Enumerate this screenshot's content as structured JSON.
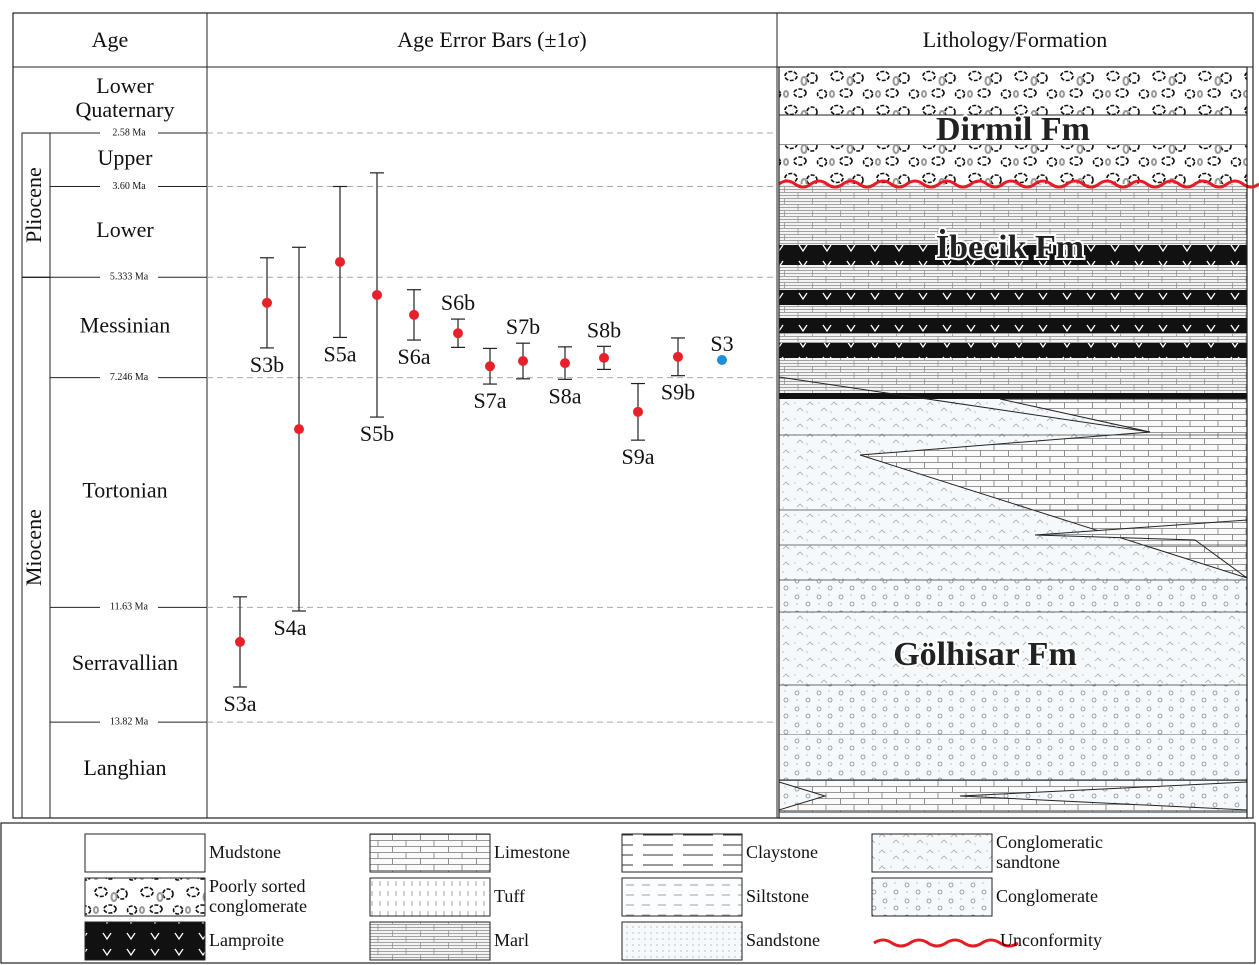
{
  "header": {
    "age": "Age",
    "error_bars": "Age Error Bars (±1σ)",
    "lithology": "Lithology/Formation"
  },
  "chart_data": {
    "type": "errorbar",
    "ylim": [
      1.32,
      15.65
    ],
    "reversed": true,
    "grid": true,
    "yticks": [
      {
        "value": 2.58,
        "label": "2.58 Ma"
      },
      {
        "value": 3.6,
        "label": "3.60 Ma"
      },
      {
        "value": 5.333,
        "label": "5.333 Ma"
      },
      {
        "value": 7.246,
        "label": "7.246 Ma"
      },
      {
        "value": 11.63,
        "label": "11.63 Ma"
      },
      {
        "value": 13.82,
        "label": "13.82 Ma"
      }
    ],
    "periods": [
      "Pliocene",
      "Miocene"
    ],
    "stages": [
      "Lower Quaternary",
      "Upper",
      "Lower",
      "Messinian",
      "Tortonian",
      "Serravallian",
      "Langhian"
    ],
    "samples": [
      {
        "label": "S3a",
        "value": 12.29,
        "error": 0.86,
        "color": "#e8202a"
      },
      {
        "label": "S3b",
        "value": 5.82,
        "error": 0.86,
        "color": "#e8202a"
      },
      {
        "label": "S4a",
        "value": 8.23,
        "error": 3.47,
        "color": "#e8202a"
      },
      {
        "label": "S5a",
        "value": 5.04,
        "error": 1.44,
        "color": "#e8202a"
      },
      {
        "label": "S5b",
        "value": 5.67,
        "error": 2.33,
        "color": "#e8202a"
      },
      {
        "label": "S6a",
        "value": 6.05,
        "error": 0.48,
        "color": "#e8202a"
      },
      {
        "label": "S6b",
        "value": 6.4,
        "error": 0.27,
        "color": "#e8202a"
      },
      {
        "label": "S7a",
        "value": 7.03,
        "error": 0.34,
        "color": "#e8202a"
      },
      {
        "label": "S7b",
        "value": 6.93,
        "error": 0.34,
        "color": "#e8202a"
      },
      {
        "label": "S8a",
        "value": 6.97,
        "error": 0.31,
        "color": "#e8202a"
      },
      {
        "label": "S8b",
        "value": 6.87,
        "error": 0.22,
        "color": "#e8202a"
      },
      {
        "label": "S9a",
        "value": 7.9,
        "error": 0.54,
        "color": "#e8202a"
      },
      {
        "label": "S9b",
        "value": 6.85,
        "error": 0.36,
        "color": "#e8202a"
      },
      {
        "label": "S3",
        "value": 6.91,
        "color": "#1e8fd6"
      }
    ]
  },
  "lithology": {
    "formations": [
      "Dirmil Fm",
      "İbecik Fm",
      "Gölhisar Fm"
    ]
  },
  "legend": {
    "items": [
      "Mudstone",
      "Poorly sorted conglomerate",
      "Lamproite",
      "Limestone",
      "Tuff",
      "Marl",
      "Claystone",
      "Siltstone",
      "Sandstone",
      "Conglomeratic sandtone",
      "Conglomerate",
      "Unconformity"
    ]
  }
}
